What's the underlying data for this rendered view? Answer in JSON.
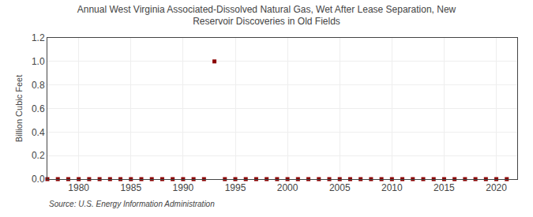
{
  "chart_data": {
    "type": "scatter",
    "title": "Annual West Virginia Associated-Dissolved Natural Gas, Wet After Lease Separation, New\nReservoir Discoveries in Old Fields",
    "ylabel": "Billion Cubic Feet",
    "annotations": [
      "Source: U.S. Energy Information Administration"
    ],
    "x": [
      1977,
      1978,
      1979,
      1980,
      1981,
      1982,
      1983,
      1984,
      1985,
      1986,
      1987,
      1988,
      1989,
      1990,
      1991,
      1992,
      1993,
      1994,
      1995,
      1996,
      1997,
      1998,
      1999,
      2000,
      2001,
      2002,
      2003,
      2004,
      2005,
      2006,
      2007,
      2008,
      2009,
      2010,
      2011,
      2012,
      2013,
      2014,
      2015,
      2016,
      2017,
      2018,
      2019,
      2020,
      2021
    ],
    "values": [
      0.0,
      0.0,
      0.0,
      0.0,
      0.0,
      0.0,
      0.0,
      0.0,
      0.0,
      0.0,
      0.0,
      0.0,
      0.0,
      0.0,
      0.0,
      0.0,
      1.0,
      0.0,
      0.0,
      0.0,
      0.0,
      0.0,
      0.0,
      0.0,
      0.0,
      0.0,
      0.0,
      0.0,
      0.0,
      0.0,
      0.0,
      0.0,
      0.0,
      0.0,
      0.0,
      0.0,
      0.0,
      0.0,
      0.0,
      0.0,
      0.0,
      0.0,
      0.0,
      0.0,
      0.0
    ],
    "color": "#8b0000",
    "marker": "square",
    "xlim": [
      1977,
      2022
    ],
    "ylim": [
      0.0,
      1.2
    ],
    "xticks": [
      1980,
      1985,
      1990,
      1995,
      2000,
      2005,
      2010,
      2015,
      2020
    ],
    "yticks": [
      {
        "value": 0,
        "label": "0.0"
      },
      0.2,
      0.4,
      0.6,
      0.8,
      {
        "value": 1,
        "label": "1.0"
      },
      1.2
    ],
    "grid": true
  }
}
